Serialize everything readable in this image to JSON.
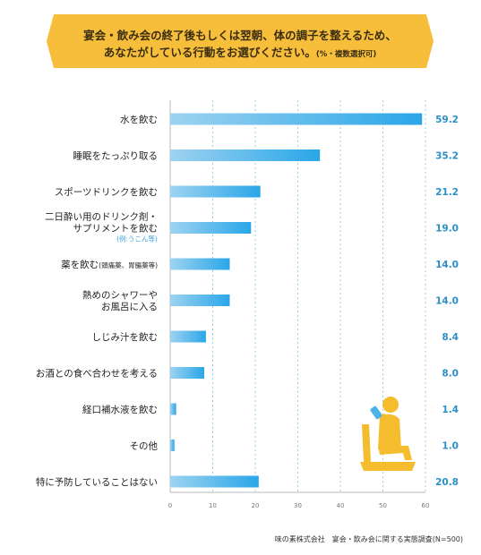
{
  "header": {
    "line1": "宴会・飲み会の終了後もしくは翌朝、体の調子を整えるため、",
    "line2": "あなたがしている行動をお選びください。",
    "note": "(%・複数選択可)"
  },
  "source": "味の素株式会社　宴会・飲み会に関する実態調査(N=500)",
  "colors": {
    "bar_start": "#9dd3f1",
    "bar_end": "#2aa6e8",
    "value_text": "#2a8fc9",
    "banner": "#f7be3b",
    "figure": "#f5bc2d"
  },
  "icon": "person-drinking-in-chair-icon",
  "chart_data": {
    "type": "bar",
    "orientation": "horizontal",
    "categories": [
      {
        "lines": [
          "水を飲む"
        ],
        "sub": "",
        "note": ""
      },
      {
        "lines": [
          "睡眠をたっぷり取る"
        ],
        "sub": "",
        "note": ""
      },
      {
        "lines": [
          "スポーツドリンクを飲む"
        ],
        "sub": "",
        "note": ""
      },
      {
        "lines": [
          "二日酔い用のドリンク剤・",
          "サプリメントを飲む"
        ],
        "sub": "",
        "note": "(例:うこん等)"
      },
      {
        "lines": [
          "薬を飲む"
        ],
        "sub": "(頭痛薬、胃腸薬等)",
        "note": ""
      },
      {
        "lines": [
          "熱めのシャワーや",
          "お風呂に入る"
        ],
        "sub": "",
        "note": ""
      },
      {
        "lines": [
          "しじみ汁を飲む"
        ],
        "sub": "",
        "note": ""
      },
      {
        "lines": [
          "お酒との食べ合わせを考える"
        ],
        "sub": "",
        "note": ""
      },
      {
        "lines": [
          "経口補水液を飲む"
        ],
        "sub": "",
        "note": ""
      },
      {
        "lines": [
          "その他"
        ],
        "sub": "",
        "note": ""
      },
      {
        "lines": [
          "特に予防していることはない"
        ],
        "sub": "",
        "note": ""
      }
    ],
    "values": [
      59.2,
      35.2,
      21.2,
      19.0,
      14.0,
      14.0,
      8.4,
      8.0,
      1.4,
      1.0,
      20.8
    ],
    "value_labels": [
      "59.2",
      "35.2",
      "21.2",
      "19.0",
      "14.0",
      "14.0",
      "8.4",
      "8.0",
      "1.4",
      "1.0",
      "20.8"
    ],
    "xlim": [
      0,
      60
    ],
    "xticks": [
      "0",
      "10",
      "20",
      "30",
      "40",
      "50",
      "60"
    ],
    "grid": "vertical dashed",
    "unit": "%"
  }
}
